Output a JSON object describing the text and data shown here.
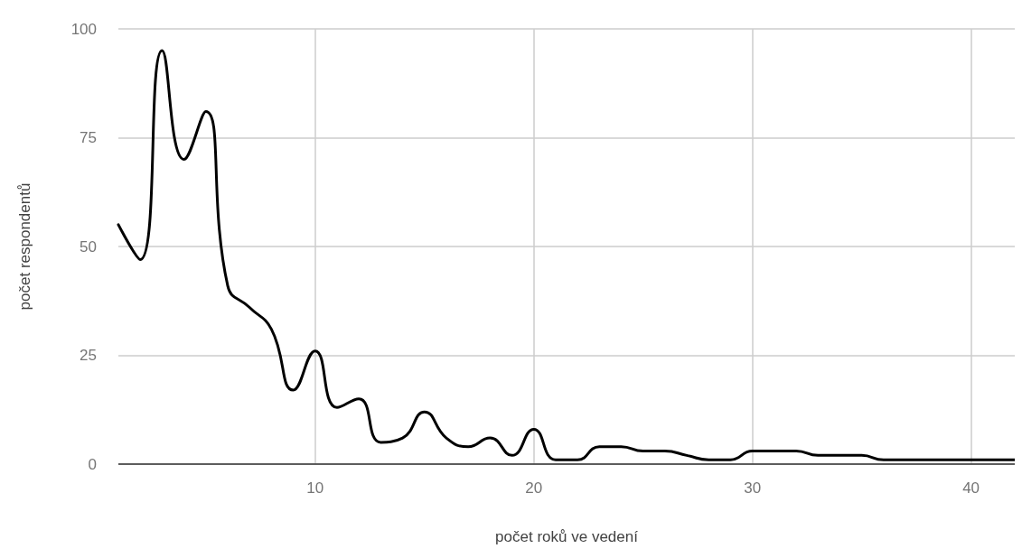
{
  "chart_data": {
    "type": "line",
    "xlabel": "počet roků ve vedení",
    "ylabel": "počet respondentů",
    "x": [
      1,
      2,
      3,
      4,
      5,
      6,
      7,
      8,
      9,
      10,
      11,
      12,
      13,
      14,
      15,
      16,
      17,
      18,
      19,
      20,
      21,
      22,
      23,
      24,
      25,
      26,
      27,
      28,
      29,
      30,
      31,
      32,
      33,
      34,
      35,
      36,
      37,
      38,
      39,
      40,
      41,
      42
    ],
    "series": [
      {
        "color": "#000000",
        "values": [
          55,
          47,
          95,
          70,
          81,
          41,
          36,
          31,
          17,
          26,
          13,
          15,
          5,
          6,
          12,
          6,
          4,
          6,
          2,
          8,
          1,
          1,
          4,
          4,
          3,
          3,
          2,
          1,
          1,
          3,
          3,
          3,
          2,
          2,
          2,
          1,
          1,
          1,
          1,
          1,
          1,
          1
        ]
      }
    ],
    "xlim": [
      1,
      42
    ],
    "xticks": [
      10,
      20,
      30,
      40
    ],
    "ylim": [
      0,
      100
    ],
    "yticks": [
      0,
      25,
      50,
      75,
      100
    ],
    "grid": true,
    "marker": "none",
    "line_style": "solid"
  }
}
